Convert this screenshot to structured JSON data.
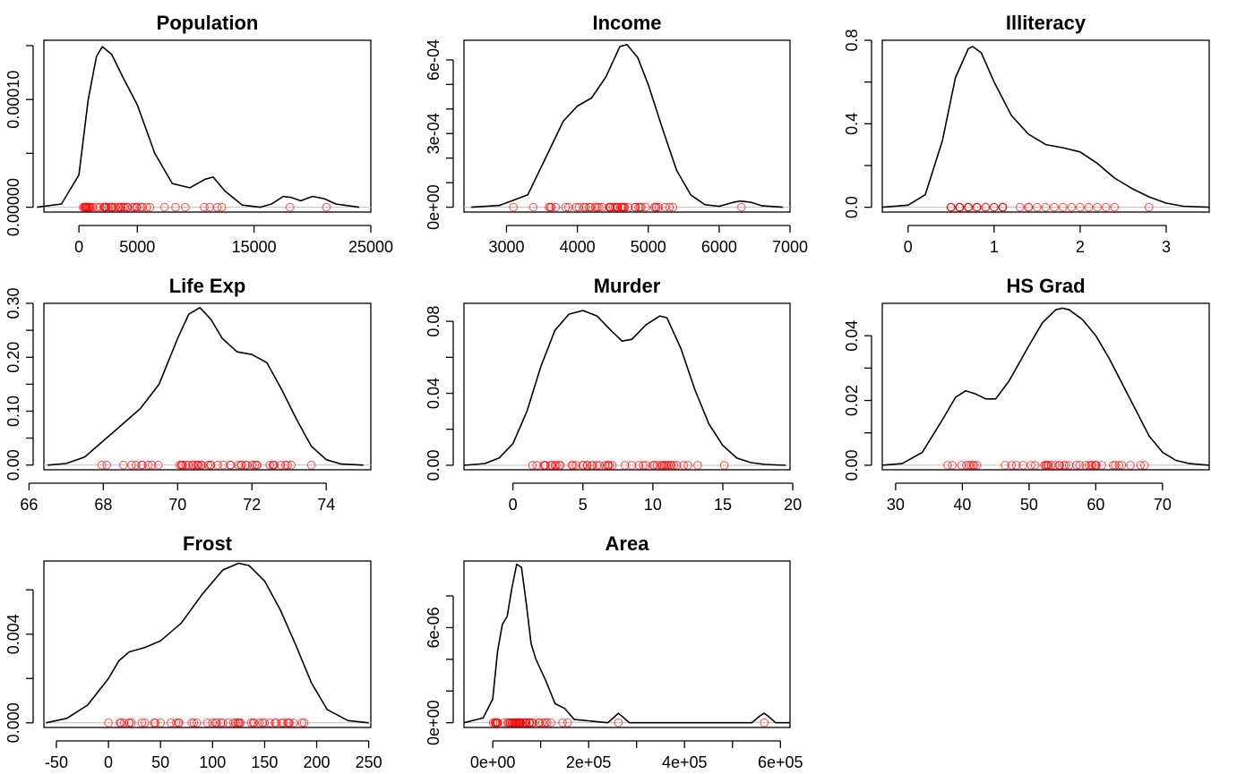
{
  "chart_data": [
    {
      "type": "line",
      "title": "Population",
      "density": {
        "x": [
          -3600,
          -1500,
          0,
          800,
          1500,
          2000,
          2800,
          3800,
          5000,
          6500,
          8000,
          9500,
          10800,
          11500,
          12500,
          14000,
          15500,
          16500,
          17500,
          18200,
          19000,
          20000,
          21000,
          22000,
          24000
        ],
        "y": [
          0.0,
          3e-06,
          3e-05,
          0.0001,
          0.00014,
          0.000149,
          0.000142,
          0.00012,
          9.5e-05,
          5e-05,
          2.2e-05,
          1.8e-05,
          2.6e-05,
          2.8e-05,
          1.5e-05,
          2e-06,
          0.0,
          3e-06,
          1e-05,
          9e-06,
          6e-06,
          1e-05,
          8e-06,
          3e-06,
          0.0
        ]
      },
      "rug": [
        365,
        472,
        518,
        579,
        590,
        637,
        681,
        746,
        812,
        868,
        931,
        1058,
        1203,
        1544,
        1799,
        2110,
        2212,
        2280,
        2284,
        2341,
        2541,
        2715,
        2816,
        2861,
        3100,
        3387,
        3399,
        3559,
        3615,
        3806,
        3921,
        4122,
        4173,
        4589,
        4767,
        4931,
        4981,
        5313,
        5441,
        5814,
        6085,
        7333,
        8277,
        9111,
        10735,
        11197,
        11860,
        12237,
        18076,
        21198
      ],
      "xlim": [
        -3000,
        25000
      ],
      "xticks": [
        0,
        5000,
        15000,
        25000
      ],
      "xtick_labels": [
        "0",
        "5000",
        "15000",
        "25000"
      ],
      "ylim": [
        -4.5e-06,
        0.000155
      ],
      "yticks": [
        0,
        5e-05,
        0.0001,
        0.00015
      ],
      "ytick_labels": [
        "0.00000",
        "",
        "0.00010",
        ""
      ]
    },
    {
      "type": "line",
      "title": "Income",
      "density": {
        "x": [
          2500,
          2900,
          3300,
          3600,
          3800,
          4000,
          4200,
          4400,
          4600,
          4700,
          4850,
          5000,
          5200,
          5400,
          5600,
          5800,
          6000,
          6200,
          6300,
          6450,
          6600,
          6900
        ],
        "y": [
          0.0,
          7e-06,
          5e-05,
          0.00023,
          0.00035,
          0.000412,
          0.000445,
          0.00053,
          0.000655,
          0.000662,
          0.00061,
          0.0005,
          0.00032,
          0.00015,
          5e-05,
          1e-05,
          4e-06,
          2e-05,
          2.5e-05,
          2e-05,
          6e-06,
          0.0
        ]
      },
      "rug": [
        3098,
        3378,
        3601,
        3617,
        3635,
        3694,
        3834,
        3875,
        3983,
        4022,
        4091,
        4119,
        4167,
        4188,
        4254,
        4281,
        4307,
        4347,
        4449,
        4458,
        4460,
        4468,
        4502,
        4530,
        4558,
        4564,
        4566,
        4611,
        4628,
        4633,
        4647,
        4660,
        4669,
        4716,
        4815,
        4817,
        4864,
        4884,
        4903,
        4963,
        5087,
        5107,
        5114,
        5149,
        5237,
        5299,
        5348,
        6315
      ],
      "xlim": [
        2400,
        7000
      ],
      "xticks": [
        3000,
        4000,
        5000,
        6000,
        7000
      ],
      "xtick_labels": [
        "3000",
        "4000",
        "5000",
        "6000",
        "7000"
      ],
      "ylim": [
        -1.98e-05,
        0.00068
      ],
      "yticks": [
        0,
        0.0001,
        0.0002,
        0.0003,
        0.0004,
        0.0005,
        0.0006
      ],
      "ytick_labels": [
        "0e+00",
        "",
        "",
        "3e-04",
        "",
        "",
        "6e-04"
      ]
    },
    {
      "type": "line",
      "title": "Illiteracy",
      "density": {
        "x": [
          -0.3,
          0.0,
          0.2,
          0.4,
          0.55,
          0.7,
          0.75,
          0.85,
          1.0,
          1.2,
          1.4,
          1.6,
          1.8,
          2.0,
          2.2,
          2.4,
          2.6,
          2.8,
          3.0,
          3.2,
          3.5
        ],
        "y": [
          0.0,
          0.01,
          0.06,
          0.32,
          0.62,
          0.76,
          0.77,
          0.74,
          0.6,
          0.44,
          0.35,
          0.3,
          0.285,
          0.265,
          0.21,
          0.14,
          0.09,
          0.05,
          0.02,
          0.005,
          0.0
        ]
      },
      "rug": [
        0.5,
        0.5,
        0.5,
        0.6,
        0.6,
        0.6,
        0.6,
        0.6,
        0.7,
        0.7,
        0.7,
        0.7,
        0.8,
        0.8,
        0.8,
        0.9,
        0.9,
        1.0,
        1.0,
        1.1,
        1.1,
        1.1,
        1.1,
        1.3,
        1.4,
        1.4,
        1.5,
        1.6,
        1.7,
        1.8,
        1.9,
        2.0,
        2.1,
        2.2,
        2.3,
        2.4,
        2.8
      ],
      "xlim": [
        -0.3,
        3.5
      ],
      "xticks": [
        0,
        1,
        2,
        3
      ],
      "xtick_labels": [
        "0",
        "1",
        "2",
        "3"
      ],
      "ylim": [
        -0.023,
        0.8
      ],
      "yticks": [
        0,
        0.2,
        0.4,
        0.6,
        0.8
      ],
      "ytick_labels": [
        "0.0",
        "",
        "0.4",
        "",
        "0.8"
      ]
    },
    {
      "type": "line",
      "title": "Life Exp",
      "density": {
        "x": [
          66.5,
          67.0,
          67.5,
          68.0,
          68.5,
          69.0,
          69.5,
          70.0,
          70.3,
          70.6,
          70.9,
          71.2,
          71.6,
          72.0,
          72.4,
          72.8,
          73.2,
          73.6,
          74.0,
          74.4,
          75.0
        ],
        "y": [
          0.0,
          0.003,
          0.015,
          0.045,
          0.075,
          0.105,
          0.15,
          0.235,
          0.28,
          0.292,
          0.27,
          0.235,
          0.21,
          0.205,
          0.19,
          0.14,
          0.085,
          0.035,
          0.01,
          0.002,
          0.0
        ]
      },
      "rug": [
        67.96,
        68.09,
        68.54,
        68.76,
        68.88,
        69.03,
        69.05,
        69.21,
        69.31,
        69.48,
        70.06,
        70.1,
        70.11,
        70.14,
        70.22,
        70.29,
        70.39,
        70.43,
        70.51,
        70.55,
        70.56,
        70.63,
        70.66,
        70.82,
        70.88,
        70.9,
        71.08,
        71.23,
        71.42,
        71.43,
        71.64,
        71.71,
        71.72,
        71.83,
        71.87,
        72.01,
        72.08,
        72.13,
        72.14,
        72.48,
        72.56,
        72.58,
        72.6,
        72.78,
        72.9,
        72.96,
        73.06,
        73.6
      ],
      "xlim": [
        66.4,
        75.2
      ],
      "xticks": [
        66,
        68,
        70,
        72,
        74
      ],
      "xtick_labels": [
        "66",
        "68",
        "70",
        "72",
        "74"
      ],
      "ylim": [
        -0.0087,
        0.3
      ],
      "yticks": [
        0,
        0.05,
        0.1,
        0.15,
        0.2,
        0.25,
        0.3
      ],
      "ytick_labels": [
        "0.00",
        "",
        "0.10",
        "",
        "0.20",
        "",
        "0.30"
      ]
    },
    {
      "type": "line",
      "title": "Murder",
      "density": {
        "x": [
          -3.5,
          -2.0,
          -1.0,
          0.0,
          1.0,
          2.0,
          3.0,
          4.0,
          5.0,
          6.0,
          7.0,
          7.8,
          8.5,
          9.5,
          10.5,
          11.0,
          12.0,
          13.0,
          14.0,
          15.0,
          16.0,
          17.0,
          18.0,
          19.5
        ],
        "y": [
          0.0,
          0.001,
          0.004,
          0.012,
          0.03,
          0.055,
          0.075,
          0.084,
          0.086,
          0.083,
          0.075,
          0.069,
          0.07,
          0.078,
          0.083,
          0.082,
          0.065,
          0.042,
          0.023,
          0.011,
          0.004,
          0.0015,
          0.0005,
          0.0
        ]
      },
      "rug": [
        1.4,
        1.7,
        2.2,
        2.3,
        2.3,
        2.7,
        2.8,
        3.0,
        3.1,
        3.3,
        3.4,
        4.2,
        4.3,
        4.5,
        5.0,
        5.0,
        5.3,
        5.3,
        5.6,
        5.7,
        6.0,
        6.2,
        6.6,
        6.8,
        6.8,
        6.9,
        7.1,
        8.0,
        8.5,
        9.0,
        9.3,
        9.5,
        10.0,
        10.1,
        10.3,
        10.6,
        10.7,
        10.8,
        10.9,
        11.0,
        11.1,
        11.3,
        11.3,
        11.5,
        11.7,
        12.2,
        12.5,
        13.2,
        15.1
      ],
      "xlim": [
        -3.5,
        19.8
      ],
      "xticks": [
        0,
        5,
        10,
        15,
        20
      ],
      "xtick_labels": [
        "0",
        "5",
        "10",
        "15",
        "20"
      ],
      "ylim": [
        -0.0025,
        0.09
      ],
      "yticks": [
        0,
        0.02,
        0.04,
        0.06,
        0.08
      ],
      "ytick_labels": [
        "0.00",
        "",
        "0.04",
        "",
        "0.08"
      ]
    },
    {
      "type": "line",
      "title": "HS Grad",
      "density": {
        "x": [
          28,
          31,
          34,
          37,
          39,
          40.5,
          42,
          43.5,
          45,
          47,
          50,
          52,
          54,
          55,
          56,
          58,
          60,
          62,
          64,
          66,
          68,
          70,
          72,
          74,
          77
        ],
        "y": [
          0.0,
          0.0005,
          0.004,
          0.014,
          0.021,
          0.023,
          0.022,
          0.0205,
          0.0205,
          0.026,
          0.037,
          0.044,
          0.048,
          0.0485,
          0.048,
          0.045,
          0.04,
          0.033,
          0.025,
          0.017,
          0.009,
          0.004,
          0.0015,
          0.0005,
          0.0
        ]
      },
      "rug": [
        37.8,
        38.5,
        39.9,
        40.6,
        41.0,
        41.3,
        41.6,
        41.8,
        42.2,
        46.4,
        47.4,
        48.1,
        49.1,
        50.3,
        50.9,
        52.3,
        52.5,
        52.6,
        52.8,
        52.9,
        53.3,
        53.9,
        54.5,
        54.6,
        55.2,
        55.5,
        56.0,
        57.1,
        57.6,
        58.5,
        59.0,
        59.3,
        59.5,
        59.9,
        60.0,
        60.1,
        60.9,
        62.6,
        62.9,
        63.5,
        63.9,
        65.2,
        66.7,
        67.3
      ],
      "xlim": [
        28,
        77
      ],
      "xticks": [
        30,
        40,
        50,
        60,
        70
      ],
      "xtick_labels": [
        "30",
        "40",
        "50",
        "60",
        "70"
      ],
      "ylim": [
        -0.0014,
        0.05
      ],
      "yticks": [
        0,
        0.01,
        0.02,
        0.03,
        0.04
      ],
      "ytick_labels": [
        "0.00",
        "",
        "0.02",
        "",
        "0.04"
      ]
    },
    {
      "type": "line",
      "title": "Frost",
      "density": {
        "x": [
          -60,
          -40,
          -20,
          0,
          10,
          20,
          35,
          50,
          70,
          90,
          110,
          125,
          135,
          150,
          165,
          180,
          195,
          210,
          230,
          250
        ],
        "y": [
          0.0,
          0.0002,
          0.0008,
          0.002,
          0.0028,
          0.0032,
          0.0034,
          0.0037,
          0.0045,
          0.0058,
          0.0069,
          0.0072,
          0.0071,
          0.0064,
          0.0051,
          0.0035,
          0.0018,
          0.0006,
          0.0001,
          0.0
        ]
      },
      "rug": [
        0,
        11,
        12,
        15,
        20,
        20,
        22,
        32,
        35,
        44,
        45,
        50,
        60,
        65,
        67,
        68,
        80,
        82,
        85,
        95,
        100,
        103,
        104,
        108,
        110,
        115,
        120,
        122,
        124,
        125,
        126,
        127,
        137,
        139,
        140,
        145,
        148,
        150,
        155,
        160,
        161,
        166,
        168,
        172,
        173,
        174,
        178,
        186,
        188
      ],
      "xlim": [
        -62,
        252
      ],
      "xticks": [
        -50,
        0,
        50,
        100,
        150,
        200,
        250
      ],
      "xtick_labels": [
        "-50",
        "0",
        "50",
        "100",
        "150",
        "200",
        "250"
      ],
      "ylim": [
        -0.00021,
        0.0073
      ],
      "yticks": [
        0,
        0.002,
        0.004,
        0.006
      ],
      "ytick_labels": [
        "0.000",
        "",
        "0.004",
        ""
      ]
    },
    {
      "type": "line",
      "title": "Area",
      "density": {
        "x": [
          -60000,
          -20000,
          0,
          10000,
          20000,
          30000,
          40000,
          50000,
          60000,
          70000,
          80000,
          90000,
          110000,
          130000,
          150000,
          170000,
          240000,
          255000,
          262000,
          270000,
          285000,
          540000,
          556000,
          566000,
          575000,
          590000,
          620000
        ],
        "y": [
          0.0,
          3e-07,
          1.5e-06,
          4.5e-06,
          6.2e-06,
          6.7e-06,
          8.5e-06,
          1e-05,
          9.8e-06,
          7.5e-06,
          5e-06,
          4e-06,
          2.7e-06,
          1.2e-06,
          9e-07,
          2e-07,
          0.0,
          4e-07,
          6e-07,
          4e-07,
          0.0,
          0.0,
          4e-07,
          6e-07,
          4e-07,
          0.0,
          0.0
        ]
      },
      "rug": [
        1049,
        4862,
        5543,
        6450,
        8257,
        9304,
        9609,
        10577,
        24035,
        31281,
        33215,
        36097,
        36291,
        39780,
        40975,
        41328,
        44177,
        44966,
        47296,
        47831,
        48798,
        49576,
        51945,
        53104,
        54810,
        55941,
        56043,
        56400,
        56817,
        58056,
        58216,
        62565,
        65715,
        68995,
        68782,
        69998,
        75955,
        76483,
        77227,
        82264,
        84268,
        96184,
        97203,
        103766,
        109782,
        113417,
        121412,
        145587,
        156361,
        262134,
        566432
      ],
      "xlim": [
        -60000,
        620000
      ],
      "xticks": [
        0,
        100000,
        200000,
        300000,
        400000,
        500000,
        600000
      ],
      "xtick_labels": [
        "0e+00",
        "",
        "2e+05",
        "",
        "4e+05",
        "",
        "6e+05"
      ],
      "ylim": [
        -3e-07,
        1.02e-05
      ],
      "yticks": [
        0,
        2e-06,
        4e-06,
        6e-06,
        8e-06
      ],
      "ytick_labels": [
        "0e+00",
        "",
        "",
        "6e-06",
        ""
      ]
    }
  ]
}
